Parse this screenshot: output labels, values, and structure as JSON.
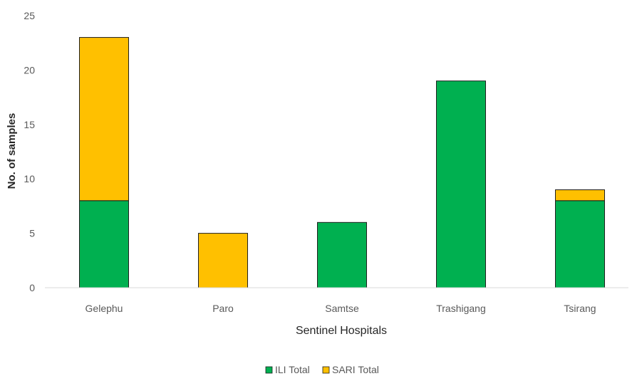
{
  "chart_data": {
    "type": "bar",
    "stacked": true,
    "categories": [
      "Gelephu",
      "Paro",
      "Samtse",
      "Trashigang",
      "Tsirang"
    ],
    "series": [
      {
        "name": "ILI Total",
        "values": [
          8,
          0,
          6,
          19,
          8
        ],
        "color": "#00B050"
      },
      {
        "name": "SARI Total",
        "values": [
          15,
          5,
          0,
          0,
          1
        ],
        "color": "#FFC000"
      }
    ],
    "xlabel": "Sentinel Hospitals",
    "ylabel": "No. of samples",
    "ylim": [
      0,
      25
    ],
    "yticks": [
      "0",
      "5",
      "10",
      "15",
      "20",
      "25"
    ],
    "grid": false,
    "legend_position": "bottom"
  }
}
